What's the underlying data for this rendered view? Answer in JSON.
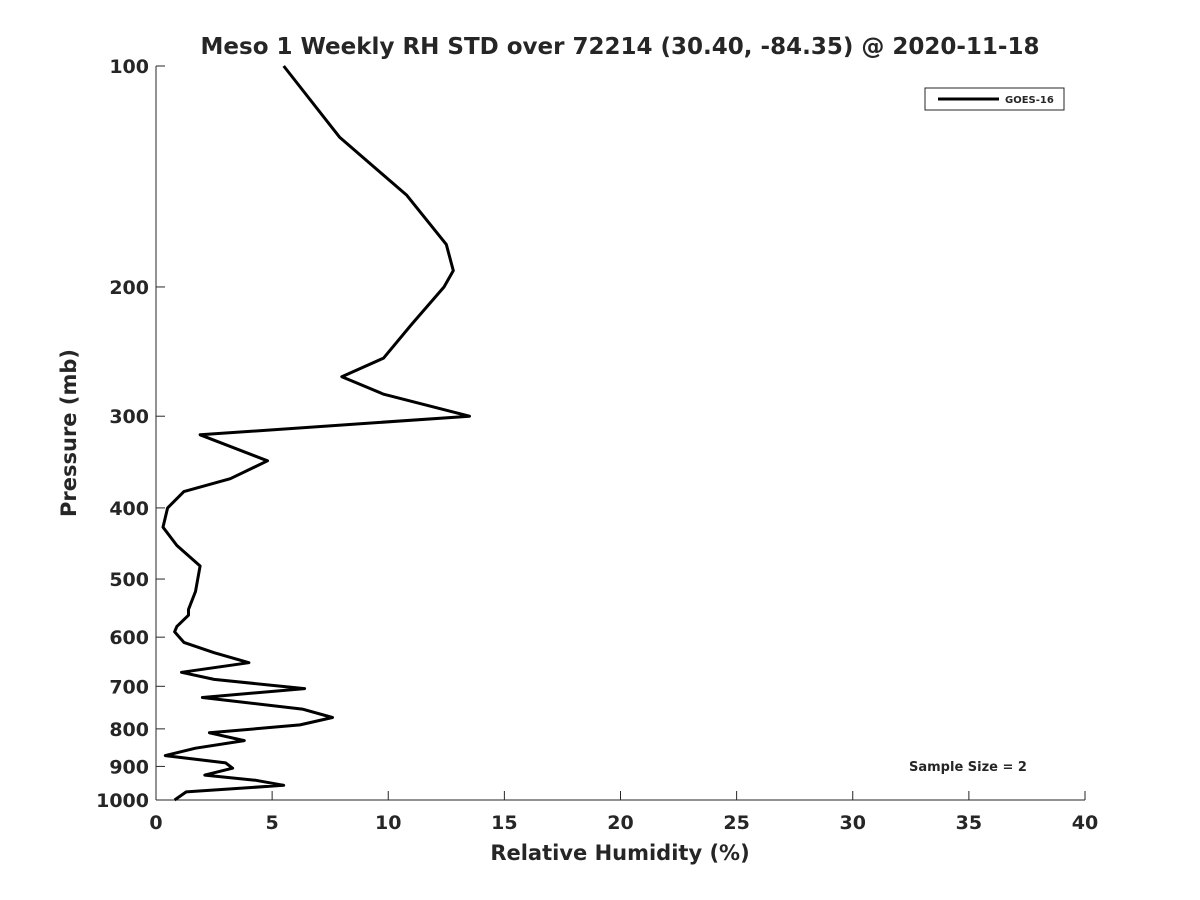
{
  "chart_data": {
    "type": "line",
    "title": "Meso 1 Weekly RH STD over 72214 (30.40, -84.35) @ 2020-11-18",
    "xlabel": "Relative Humidity (%)",
    "ylabel": "Pressure (mb)",
    "xlim": [
      0,
      40
    ],
    "ylim": [
      100,
      1000
    ],
    "y_scale": "log",
    "y_reversed": true,
    "x_ticks": [
      "0",
      "5",
      "10",
      "15",
      "20",
      "25",
      "30",
      "35",
      "40"
    ],
    "y_ticks": [
      "100",
      "200",
      "300",
      "400",
      "500",
      "600",
      "700",
      "800",
      "900",
      "1000"
    ],
    "grid": false,
    "legend_position": "top-right",
    "annotation": "Sample Size = 2",
    "series": [
      {
        "name": "GOES-16",
        "color": "#000000",
        "points": [
          [
            5.5,
            100
          ],
          [
            7.9,
            125
          ],
          [
            10.8,
            150
          ],
          [
            12.5,
            175
          ],
          [
            12.8,
            190
          ],
          [
            12.4,
            200
          ],
          [
            11.0,
            225
          ],
          [
            9.8,
            250
          ],
          [
            8.0,
            265
          ],
          [
            9.8,
            280
          ],
          [
            13.5,
            300
          ],
          [
            1.9,
            318
          ],
          [
            4.8,
            345
          ],
          [
            3.2,
            365
          ],
          [
            1.2,
            380
          ],
          [
            0.5,
            400
          ],
          [
            0.3,
            425
          ],
          [
            0.9,
            450
          ],
          [
            1.9,
            480
          ],
          [
            1.7,
            520
          ],
          [
            1.4,
            550
          ],
          [
            1.4,
            560
          ],
          [
            0.9,
            580
          ],
          [
            0.8,
            590
          ],
          [
            1.2,
            610
          ],
          [
            2.5,
            630
          ],
          [
            4.0,
            650
          ],
          [
            1.1,
            670
          ],
          [
            2.5,
            685
          ],
          [
            6.4,
            705
          ],
          [
            2.0,
            725
          ],
          [
            6.3,
            752
          ],
          [
            7.6,
            772
          ],
          [
            6.2,
            790
          ],
          [
            2.3,
            810
          ],
          [
            3.8,
            830
          ],
          [
            1.7,
            850
          ],
          [
            0.4,
            870
          ],
          [
            3.0,
            890
          ],
          [
            3.3,
            905
          ],
          [
            2.1,
            925
          ],
          [
            4.3,
            940
          ],
          [
            5.5,
            955
          ],
          [
            1.3,
            975
          ],
          [
            0.8,
            1000
          ]
        ]
      }
    ]
  }
}
